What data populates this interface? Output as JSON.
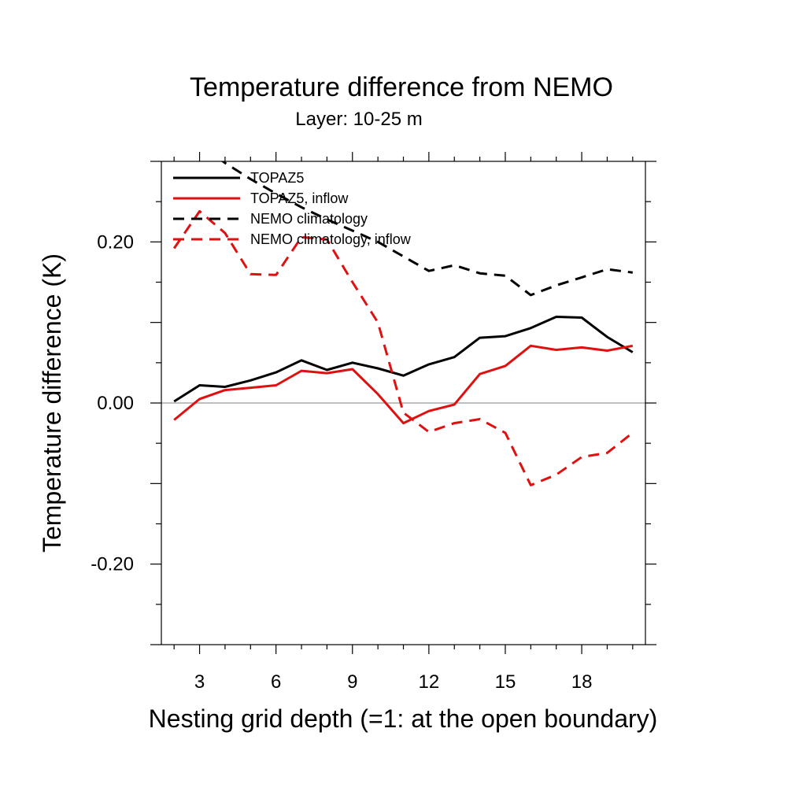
{
  "chart_data": {
    "type": "line",
    "title": "Temperature difference from NEMO",
    "subtitle": "Layer: 10-25 m",
    "xlabel": "Nesting grid depth (=1: at the open boundary)",
    "ylabel": "Temperature difference (K)",
    "xlim": [
      1.5,
      20.5
    ],
    "ylim": [
      -0.3,
      0.3
    ],
    "x_ticks": [
      3,
      6,
      9,
      12,
      15,
      18
    ],
    "x_tick_labels": [
      "3",
      "6",
      "9",
      "12",
      "15",
      "18"
    ],
    "y_ticks": [
      -0.2,
      0.0,
      0.2
    ],
    "y_tick_labels": [
      "-0.20",
      "0.00",
      "0.20"
    ],
    "zero_line": true,
    "grid": false,
    "legend_position": "top-left",
    "x": [
      2,
      3,
      4,
      5,
      6,
      7,
      8,
      9,
      10,
      11,
      12,
      13,
      14,
      15,
      16,
      17,
      18,
      19,
      20
    ],
    "series": [
      {
        "name": "TOPAZ5",
        "color": "#000000",
        "dash": "solid",
        "values": [
          0.002,
          0.022,
          0.02,
          0.028,
          0.038,
          0.053,
          0.041,
          0.05,
          0.043,
          0.034,
          0.048,
          0.057,
          0.081,
          0.083,
          0.093,
          0.107,
          0.106,
          0.082,
          0.063
        ]
      },
      {
        "name": "TOPAZ5, inflow",
        "color": "#e01010",
        "dash": "solid",
        "values": [
          -0.021,
          0.005,
          0.016,
          0.019,
          0.022,
          0.04,
          0.037,
          0.042,
          0.011,
          -0.025,
          -0.01,
          -0.002,
          0.036,
          0.046,
          0.071,
          0.066,
          0.069,
          0.065,
          0.071
        ]
      },
      {
        "name": "NEMO climatology",
        "color": "#000000",
        "dash": "dashed",
        "values": [
          0.346,
          0.322,
          0.298,
          0.278,
          0.26,
          0.243,
          0.228,
          0.214,
          0.2,
          0.182,
          0.164,
          0.171,
          0.161,
          0.158,
          0.134,
          0.146,
          0.156,
          0.166,
          0.162
        ]
      },
      {
        "name": "NEMO climatology, inflow",
        "color": "#e01010",
        "dash": "dashed",
        "values": [
          0.192,
          0.238,
          0.211,
          0.16,
          0.159,
          0.206,
          0.203,
          0.15,
          0.1,
          -0.012,
          -0.036,
          -0.025,
          -0.02,
          -0.037,
          -0.102,
          -0.089,
          -0.067,
          -0.062,
          -0.037
        ]
      }
    ]
  }
}
